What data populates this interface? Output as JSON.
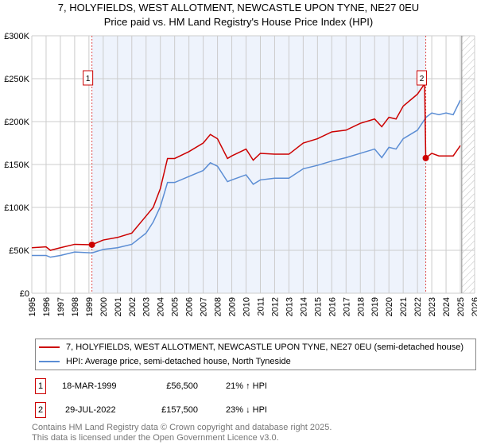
{
  "title": "7, HOLYFIELDS, WEST ALLOTMENT, NEWCASTLE UPON TYNE, NE27 0EU",
  "subtitle": "Price paid vs. HM Land Registry's House Price Index (HPI)",
  "chart_data": {
    "type": "line",
    "xlim": [
      1995,
      2026
    ],
    "ylim": [
      0,
      300000
    ],
    "x_ticks": [
      "1995",
      "1996",
      "1997",
      "1998",
      "1999",
      "2000",
      "2001",
      "2002",
      "2003",
      "2004",
      "2005",
      "2006",
      "2007",
      "2008",
      "2009",
      "2010",
      "2011",
      "2012",
      "2013",
      "2014",
      "2015",
      "2016",
      "2017",
      "2018",
      "2019",
      "2020",
      "2021",
      "2022",
      "2023",
      "2024",
      "2025",
      "2026"
    ],
    "y_ticks": [
      {
        "v": 0,
        "label": "£0"
      },
      {
        "v": 50000,
        "label": "£50K"
      },
      {
        "v": 100000,
        "label": "£100K"
      },
      {
        "v": 150000,
        "label": "£150K"
      },
      {
        "v": 200000,
        "label": "£200K"
      },
      {
        "v": 250000,
        "label": "£250K"
      },
      {
        "v": 300000,
        "label": "£300K"
      }
    ],
    "shaded_range": [
      1999.21,
      2022.58
    ],
    "hatched_from": 2025.1,
    "series": [
      {
        "name": "7, HOLYFIELDS, WEST ALLOTMENT, NEWCASTLE UPON TYNE, NE27 0EU (semi-detached house)",
        "color": "#cc0000",
        "x": [
          1995,
          1996,
          1996.3,
          1997,
          1998,
          1999.21,
          2000,
          2001,
          2002,
          2003,
          2003.5,
          2004,
          2004.5,
          2005,
          2006,
          2007,
          2007.5,
          2008,
          2008.7,
          2009,
          2010,
          2010.5,
          2011,
          2012,
          2013,
          2014,
          2015,
          2016,
          2017,
          2018,
          2019,
          2019.5,
          2020,
          2020.5,
          2021,
          2021.5,
          2022,
          2022.5,
          2022.58,
          2023,
          2023.5,
          2024,
          2024.5,
          2025
        ],
        "y": [
          53000,
          54000,
          50000,
          53000,
          57000,
          56500,
          62000,
          65000,
          70000,
          90000,
          100000,
          122000,
          157000,
          157000,
          165000,
          175000,
          185000,
          180000,
          157000,
          160000,
          168000,
          155000,
          163000,
          162000,
          162000,
          175000,
          180000,
          188000,
          190000,
          198000,
          203000,
          194000,
          205000,
          203000,
          218000,
          225000,
          232000,
          244000,
          157500,
          163000,
          160000,
          160000,
          160000,
          172000
        ]
      },
      {
        "name": "HPI: Average price, semi-detached house, North Tyneside",
        "color": "#5b8dd4",
        "x": [
          1995,
          1996,
          1996.3,
          1997,
          1998,
          1999.21,
          2000,
          2001,
          2002,
          2003,
          2003.5,
          2004,
          2004.5,
          2005,
          2006,
          2007,
          2007.5,
          2008,
          2008.7,
          2009,
          2010,
          2010.5,
          2011,
          2012,
          2013,
          2014,
          2015,
          2016,
          2017,
          2018,
          2019,
          2019.5,
          2020,
          2020.5,
          2021,
          2021.5,
          2022,
          2022.6,
          2023,
          2023.5,
          2024,
          2024.5,
          2025
        ],
        "y": [
          44000,
          44000,
          42000,
          44000,
          48000,
          47000,
          51000,
          53000,
          57000,
          70000,
          83000,
          101000,
          129000,
          129000,
          136000,
          143000,
          152000,
          148000,
          130000,
          132000,
          138000,
          127000,
          132000,
          134000,
          134000,
          145000,
          149000,
          154000,
          158000,
          163000,
          168000,
          158000,
          170000,
          168000,
          180000,
          185000,
          190000,
          205000,
          210000,
          208000,
          210000,
          208000,
          225000
        ]
      }
    ],
    "annotations": [
      {
        "label": "1",
        "x": 1999.21,
        "y": 56500
      },
      {
        "label": "2",
        "x": 2022.58,
        "y": 157500
      }
    ]
  },
  "sales": [
    {
      "num": "1",
      "date": "18-MAR-1999",
      "price": "£56,500",
      "hpi": "21% ↑ HPI"
    },
    {
      "num": "2",
      "date": "29-JUL-2022",
      "price": "£157,500",
      "hpi": "23% ↓ HPI"
    }
  ],
  "footer": [
    "Contains HM Land Registry data © Crown copyright and database right 2025.",
    "This data is licensed under the Open Government Licence v3.0."
  ]
}
